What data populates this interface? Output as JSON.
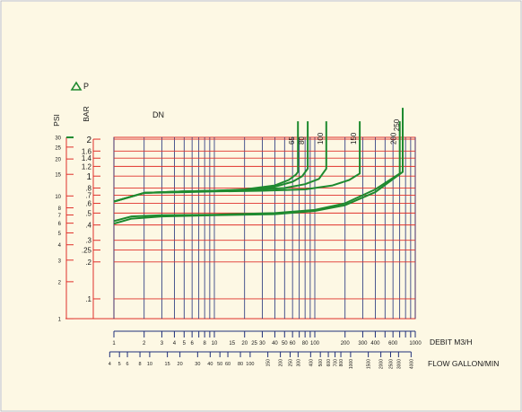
{
  "colors": {
    "background": "#fdf8e4",
    "frame": "#e0302a",
    "grid_v": "#1f2f7a",
    "grid_h": "#e0302a",
    "curve": "#1e8a2f",
    "border": "#bbbbbb"
  },
  "chart_data": {
    "type": "line",
    "title": "",
    "delta_p_label": "P",
    "delta_p_icon": "triangle-icon",
    "grid": true,
    "x_scale": "log",
    "y_scale": "log",
    "xlim_m3h": [
      1,
      1000
    ],
    "ylim_bar": [
      0.069,
      2.07
    ],
    "psi_axis": {
      "label": "PSI",
      "ticks": [
        "1",
        "2",
        "3",
        "4",
        "5",
        "6",
        "7",
        "8",
        "10",
        "15",
        "20",
        "25",
        "30"
      ],
      "values": [
        1,
        2,
        3,
        4,
        5,
        6,
        7,
        8,
        10,
        15,
        20,
        25,
        30
      ]
    },
    "bar_axis": {
      "label": "BAR",
      "ticks": [
        ".1",
        ".2",
        ".25",
        ".3",
        ".4",
        ".5",
        ".6",
        ".7",
        ".8",
        "1",
        "1.2",
        "1.4",
        "1.6",
        "2"
      ],
      "values": [
        0.1,
        0.2,
        0.25,
        0.3,
        0.4,
        0.5,
        0.6,
        0.7,
        0.8,
        1,
        1.2,
        1.4,
        1.6,
        2
      ]
    },
    "x_axis_m3h": {
      "label": "DEBIT  M3/H",
      "ticks": [
        "1",
        "2",
        "3",
        "4",
        "5",
        "6",
        "8",
        "10",
        "15",
        "20",
        "25",
        "30",
        "40",
        "50",
        "60",
        "80",
        "100",
        "200",
        "300",
        "400",
        "600",
        "1000"
      ],
      "values": [
        1,
        2,
        3,
        4,
        5,
        6,
        8,
        10,
        15,
        20,
        25,
        30,
        40,
        50,
        60,
        80,
        100,
        200,
        300,
        400,
        600,
        1000
      ]
    },
    "x_axis_gpm": {
      "label": "FLOW GALLON/MIN",
      "ticks": [
        "4",
        "5",
        "6",
        "8",
        "10",
        "15",
        "20",
        "30",
        "40",
        "50",
        "60",
        "80",
        "100",
        "150",
        "200",
        "250",
        "300",
        "400",
        "500",
        "600",
        "700",
        "800",
        "1000",
        "1500",
        "2000",
        "2500",
        "3000",
        "4000"
      ],
      "values": [
        4,
        5,
        6,
        8,
        10,
        15,
        20,
        30,
        40,
        50,
        60,
        80,
        100,
        150,
        200,
        250,
        300,
        400,
        500,
        600,
        700,
        800,
        1000,
        1500,
        2000,
        2500,
        3000,
        4000
      ]
    },
    "series_group_label": "DN",
    "series": [
      {
        "name": "65",
        "x": [
          1,
          2,
          5,
          10,
          20,
          40,
          55,
          65,
          68
        ],
        "y": [
          0.62,
          0.73,
          0.75,
          0.76,
          0.78,
          0.84,
          0.93,
          1.03,
          1.08
        ],
        "top_bar": 2.8
      },
      {
        "name": "80",
        "x": [
          1,
          2,
          5,
          10,
          20,
          40,
          60,
          75,
          85
        ],
        "y": [
          0.62,
          0.73,
          0.75,
          0.76,
          0.77,
          0.82,
          0.9,
          1.0,
          1.15
        ],
        "top_bar": 2.8
      },
      {
        "name": "100",
        "x": [
          1,
          2,
          5,
          10,
          20,
          50,
          80,
          110,
          130
        ],
        "y": [
          0.62,
          0.73,
          0.75,
          0.76,
          0.77,
          0.8,
          0.86,
          0.95,
          1.15
        ],
        "top_bar": 2.8
      },
      {
        "name": "150",
        "x": [
          1,
          2,
          5,
          10,
          30,
          80,
          150,
          220,
          280
        ],
        "y": [
          0.62,
          0.73,
          0.74,
          0.75,
          0.76,
          0.78,
          0.84,
          0.93,
          1.05
        ],
        "top_bar": 2.8
      },
      {
        "name": "200",
        "x": [
          1,
          1.5,
          3,
          10,
          40,
          100,
          200,
          400,
          700
        ],
        "y": [
          0.43,
          0.47,
          0.48,
          0.485,
          0.5,
          0.53,
          0.6,
          0.78,
          1.05
        ],
        "top_bar": 2.8
      },
      {
        "name": "250",
        "x": [
          1,
          1.5,
          3,
          10,
          40,
          100,
          200,
          400,
          750
        ],
        "y": [
          0.41,
          0.45,
          0.47,
          0.48,
          0.49,
          0.52,
          0.58,
          0.74,
          1.08
        ],
        "top_bar": 3.6
      }
    ]
  }
}
